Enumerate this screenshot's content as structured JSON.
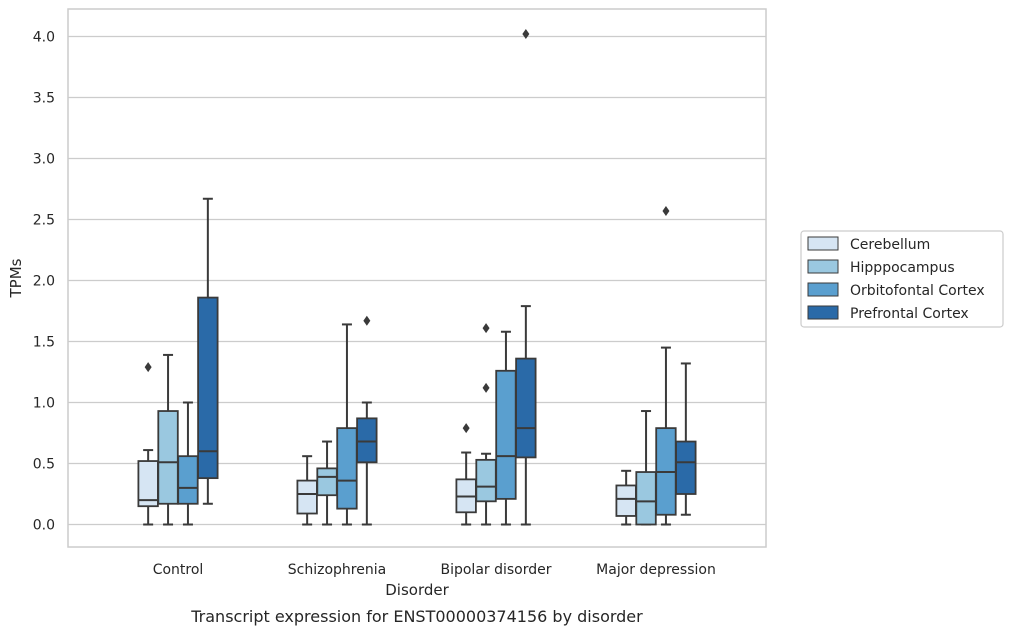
{
  "caption": "Transcript expression for ENST00000374156 by disorder",
  "chart_data": {
    "type": "box",
    "xlabel": "Disorder",
    "ylabel": "TPMs",
    "ylim": [
      -0.2,
      4.2
    ],
    "yticks": [
      "0.0",
      "0.5",
      "1.0",
      "1.5",
      "2.0",
      "2.5",
      "3.0",
      "3.5",
      "4.0"
    ],
    "grid": "horizontal",
    "legend_position": "right",
    "categories": [
      "Control",
      "Schizophrenia",
      "Bipolar disorder",
      "Major depression"
    ],
    "series": [
      {
        "name": "Cerebellum",
        "color": "#d6e5f3",
        "boxes": [
          {
            "lower_whisker": 0.0,
            "q1": 0.15,
            "median": 0.2,
            "q3": 0.52,
            "upper_whisker": 0.61,
            "outliers": [
              1.29
            ]
          },
          {
            "lower_whisker": 0.0,
            "q1": 0.09,
            "median": 0.25,
            "q3": 0.36,
            "upper_whisker": 0.56,
            "outliers": []
          },
          {
            "lower_whisker": 0.0,
            "q1": 0.1,
            "median": 0.23,
            "q3": 0.37,
            "upper_whisker": 0.59,
            "outliers": [
              0.79
            ]
          },
          {
            "lower_whisker": 0.0,
            "q1": 0.07,
            "median": 0.21,
            "q3": 0.32,
            "upper_whisker": 0.44,
            "outliers": []
          }
        ]
      },
      {
        "name": "Hipppocampus",
        "color": "#9ac8e0",
        "boxes": [
          {
            "lower_whisker": 0.0,
            "q1": 0.17,
            "median": 0.51,
            "q3": 0.93,
            "upper_whisker": 1.39,
            "outliers": []
          },
          {
            "lower_whisker": 0.0,
            "q1": 0.24,
            "median": 0.39,
            "q3": 0.46,
            "upper_whisker": 0.68,
            "outliers": []
          },
          {
            "lower_whisker": 0.0,
            "q1": 0.19,
            "median": 0.31,
            "q3": 0.53,
            "upper_whisker": 0.58,
            "outliers": [
              1.12,
              1.61
            ]
          },
          {
            "lower_whisker": 0.0,
            "q1": 0.0,
            "median": 0.19,
            "q3": 0.43,
            "upper_whisker": 0.93,
            "outliers": []
          }
        ]
      },
      {
        "name": "Orbitofontal Cortex",
        "color": "#5a9fcf",
        "boxes": [
          {
            "lower_whisker": 0.0,
            "q1": 0.17,
            "median": 0.3,
            "q3": 0.56,
            "upper_whisker": 1.0,
            "outliers": []
          },
          {
            "lower_whisker": 0.0,
            "q1": 0.13,
            "median": 0.36,
            "q3": 0.79,
            "upper_whisker": 1.64,
            "outliers": []
          },
          {
            "lower_whisker": 0.0,
            "q1": 0.21,
            "median": 0.56,
            "q3": 1.26,
            "upper_whisker": 1.58,
            "outliers": []
          },
          {
            "lower_whisker": 0.0,
            "q1": 0.08,
            "median": 0.43,
            "q3": 0.79,
            "upper_whisker": 1.45,
            "outliers": [
              2.57
            ]
          }
        ]
      },
      {
        "name": "Prefrontal Cortex",
        "color": "#2a6aa8",
        "boxes": [
          {
            "lower_whisker": 0.17,
            "q1": 0.38,
            "median": 0.6,
            "q3": 1.86,
            "upper_whisker": 2.67,
            "outliers": []
          },
          {
            "lower_whisker": 0.0,
            "q1": 0.51,
            "median": 0.68,
            "q3": 0.87,
            "upper_whisker": 1.0,
            "outliers": [
              1.67
            ]
          },
          {
            "lower_whisker": 0.0,
            "q1": 0.55,
            "median": 0.79,
            "q3": 1.36,
            "upper_whisker": 1.79,
            "outliers": [
              4.02
            ]
          },
          {
            "lower_whisker": 0.08,
            "q1": 0.25,
            "median": 0.51,
            "q3": 0.68,
            "upper_whisker": 1.32,
            "outliers": []
          }
        ]
      }
    ]
  }
}
